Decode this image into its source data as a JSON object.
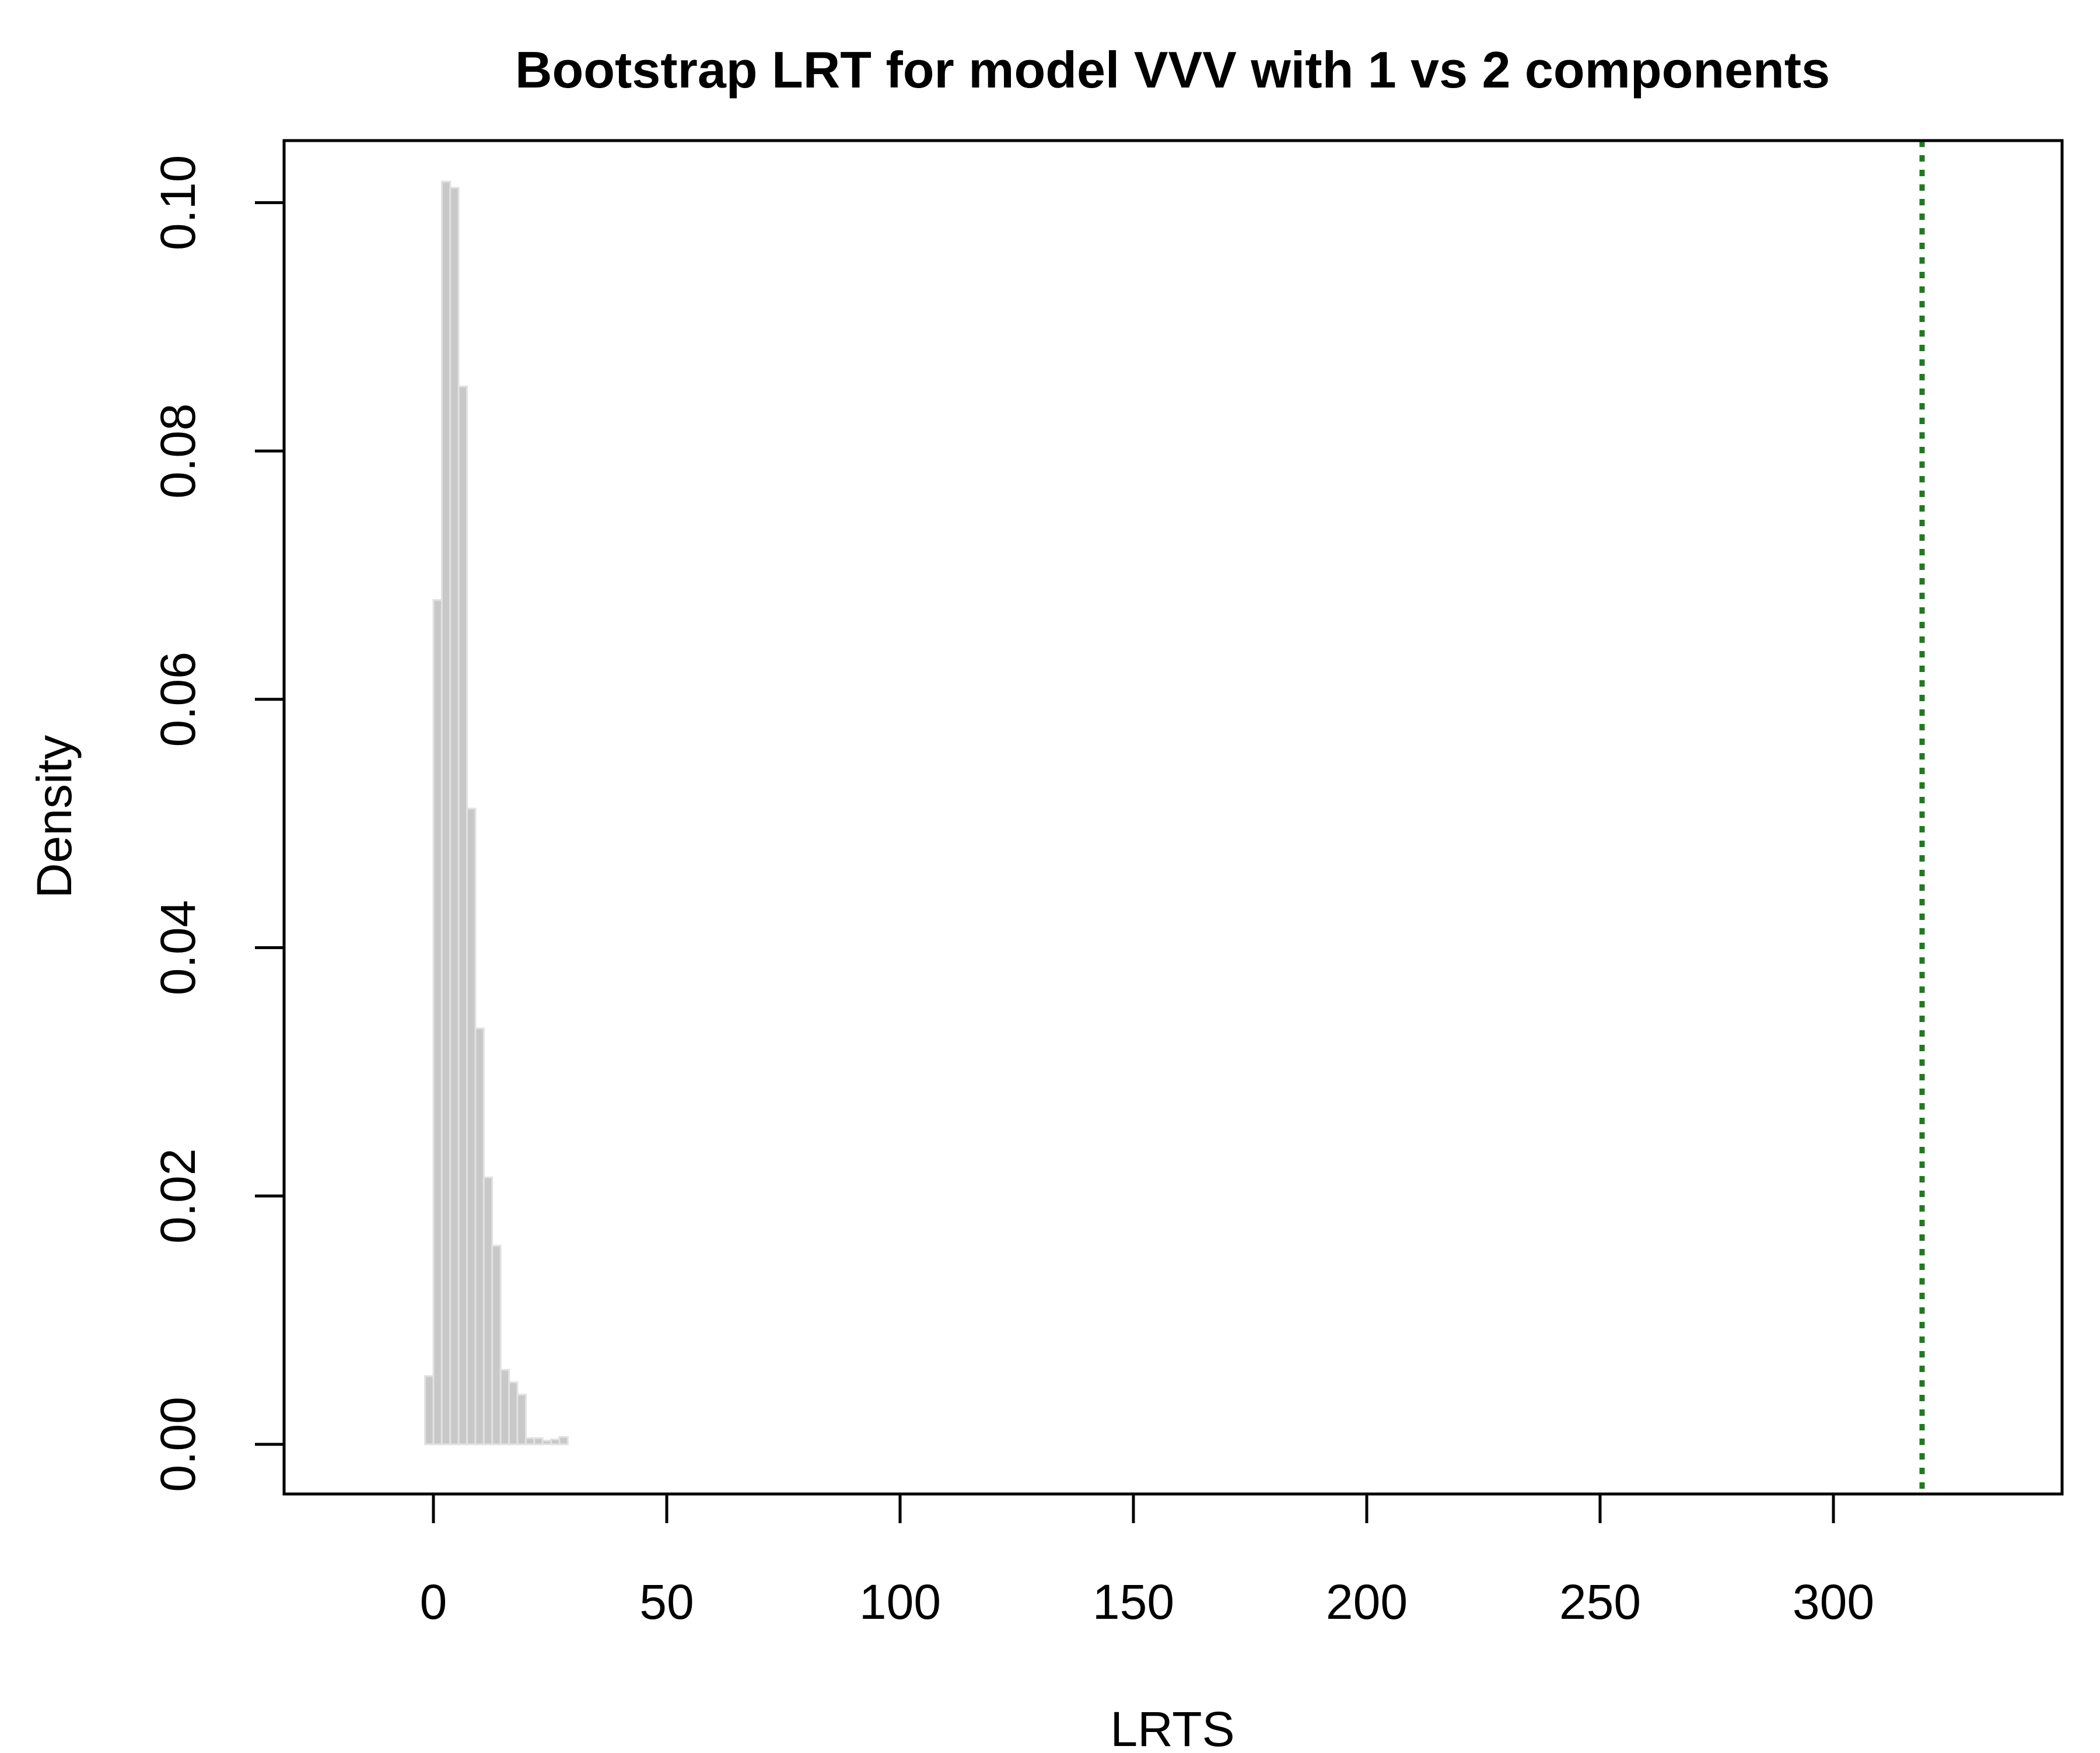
{
  "chart_data": {
    "type": "bar",
    "title": "Bootstrap LRT for model VVV with 1 vs 2 components",
    "xlabel": "LRTS",
    "ylabel": "Density",
    "xlim": [
      -32,
      349
    ],
    "ylim": [
      -0.004,
      0.105
    ],
    "x_ticks": [
      0,
      50,
      100,
      150,
      200,
      250,
      300
    ],
    "y_ticks": [
      0.0,
      0.02,
      0.04,
      0.06,
      0.08,
      0.1
    ],
    "y_tick_labels": [
      "0.00",
      "0.02",
      "0.04",
      "0.06",
      "0.08",
      "0.10"
    ],
    "bin_width": 1.8,
    "bins": [
      {
        "x0": -1.8,
        "x1": 0.0,
        "density": 0.0055
      },
      {
        "x0": 0.0,
        "x1": 1.8,
        "density": 0.068
      },
      {
        "x0": 1.8,
        "x1": 3.6,
        "density": 0.1017
      },
      {
        "x0": 3.6,
        "x1": 5.4,
        "density": 0.1012
      },
      {
        "x0": 5.4,
        "x1": 7.2,
        "density": 0.0852
      },
      {
        "x0": 7.2,
        "x1": 9.0,
        "density": 0.0512
      },
      {
        "x0": 9.0,
        "x1": 10.8,
        "density": 0.0335
      },
      {
        "x0": 10.8,
        "x1": 12.6,
        "density": 0.0215
      },
      {
        "x0": 12.6,
        "x1": 14.4,
        "density": 0.016
      },
      {
        "x0": 14.4,
        "x1": 16.2,
        "density": 0.006
      },
      {
        "x0": 16.2,
        "x1": 18.0,
        "density": 0.005
      },
      {
        "x0": 18.0,
        "x1": 19.8,
        "density": 0.004
      },
      {
        "x0": 19.8,
        "x1": 21.6,
        "density": 0.0005
      },
      {
        "x0": 21.6,
        "x1": 23.4,
        "density": 0.0005
      },
      {
        "x0": 23.4,
        "x1": 25.2,
        "density": 0.0003
      },
      {
        "x0": 25.2,
        "x1": 27.0,
        "density": 0.0004
      },
      {
        "x0": 27.0,
        "x1": 28.8,
        "density": 0.0006
      }
    ],
    "observed_lrts": 319,
    "grid": false,
    "colors": {
      "bars_fill": "#c8c8c8",
      "bars_stroke": "#e2e2e2",
      "observed_line": "#1f7a1f",
      "axis": "#000000"
    }
  }
}
